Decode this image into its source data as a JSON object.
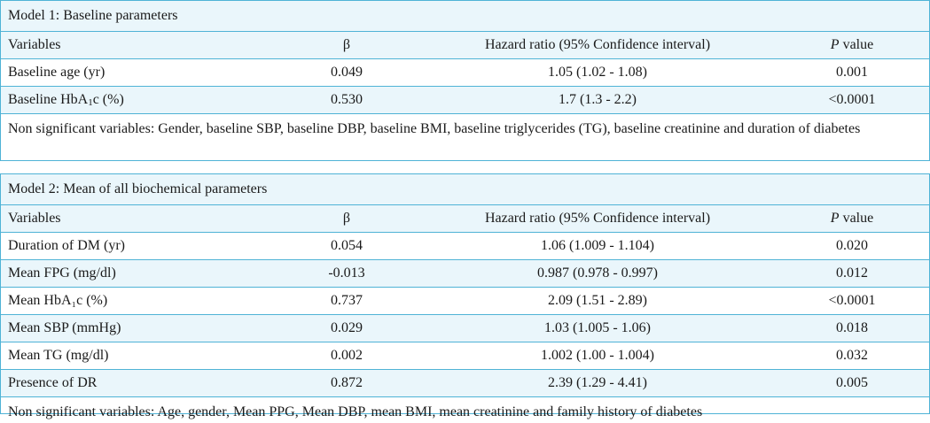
{
  "model1": {
    "title": "Model 1: Baseline parameters",
    "headers": {
      "variables": "Variables",
      "beta": "β",
      "hazard_ratio": "Hazard ratio (95% Confidence interval)",
      "p_italic": "P",
      "p_rest": " value"
    },
    "rows": [
      {
        "variable": "Baseline age (yr)",
        "beta": "0.049",
        "hr": "1.05 (1.02 - 1.08)",
        "p": "0.001"
      },
      {
        "variable_pre": "Baseline HbA",
        "variable_sub": "1",
        "variable_post": "c (%)",
        "beta": "0.530",
        "hr": "1.7 (1.3 - 2.2)",
        "p": "<0.0001"
      }
    ],
    "note": "Non significant variables: Gender, baseline SBP, baseline DBP, baseline BMI, baseline triglycerides (TG), baseline creatinine and duration of diabetes"
  },
  "model2": {
    "title": "Model 2: Mean of all biochemical parameters",
    "headers": {
      "variables": "Variables",
      "beta": "β",
      "hazard_ratio": "Hazard ratio (95% Confidence interval)",
      "p_italic": "P",
      "p_rest": " value"
    },
    "rows": [
      {
        "variable": "Duration of DM (yr)",
        "beta": "0.054",
        "hr": "1.06 (1.009 - 1.104)",
        "p": "0.020"
      },
      {
        "variable": "Mean FPG (mg/dl)",
        "beta": "-0.013",
        "hr": "0.987 (0.978 - 0.997)",
        "p": "0.012"
      },
      {
        "variable": "Mean HbA₁c (%)",
        "beta": "0.737",
        "hr": "2.09 (1.51 - 2.89)",
        "p": "<0.0001"
      },
      {
        "variable": "Mean SBP (mmHg)",
        "beta": "0.029",
        "hr": "1.03 (1.005 - 1.06)",
        "p": "0.018"
      },
      {
        "variable": "Mean TG (mg/dl)",
        "beta": "0.002",
        "hr": "1.002 (1.00 - 1.004)",
        "p": "0.032"
      },
      {
        "variable": "Presence of DR",
        "beta": "0.872",
        "hr": "2.39 (1.29 - 4.41)",
        "p": "0.005"
      }
    ],
    "note": "Non significant variables: Age, gender, Mean PPG, Mean DBP, mean BMI, mean creatinine and family history of diabetes"
  }
}
